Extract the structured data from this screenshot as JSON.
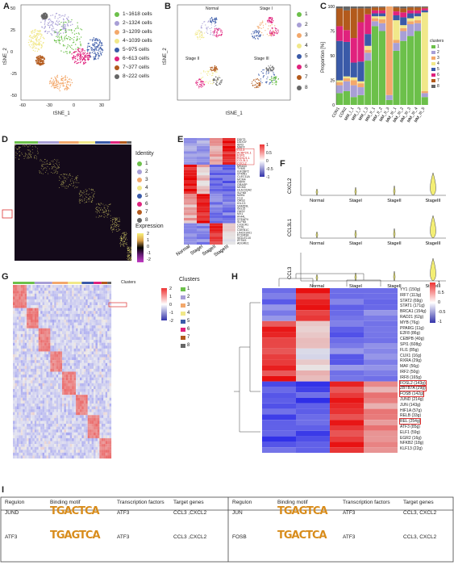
{
  "colors": {
    "c1": "#6cc04a",
    "c2": "#a89fd6",
    "c3": "#f3a86b",
    "c4": "#f1e88a",
    "c5": "#3a5aa8",
    "c6": "#e0227d",
    "c7": "#b35a1c",
    "c8": "#666666"
  },
  "panelA": {
    "label": "A",
    "xlabel": "tSNE_1",
    "ylabel": "tSNE_2",
    "xticks": [
      "-60",
      "-30",
      "0",
      "30"
    ],
    "yticks": [
      "50",
      "25",
      "0",
      "-25",
      "-50"
    ],
    "legend": [
      "1~1618 cells",
      "2~1324 cells",
      "3~1209 cells",
      "4~1039 cells",
      "5~975 cells",
      "6~613 cells",
      "7~377 cells",
      "8~222 cells"
    ]
  },
  "panelB": {
    "label": "B",
    "titles": [
      "Normal",
      "Stage I",
      "Stage II",
      "Stage III"
    ],
    "xlabel": "tSNE_1",
    "ylabel": "tSNE_2",
    "xticks": [
      "-60",
      "-30",
      "0",
      "30"
    ],
    "yticks": [
      "50",
      "25",
      "0",
      "-25"
    ],
    "legend": [
      "1",
      "2",
      "3",
      "4",
      "5",
      "6",
      "7",
      "8"
    ]
  },
  "panelC": {
    "label": "C",
    "ylabel": "Proportion [%]",
    "yticks": [
      "100",
      "75",
      "50",
      "25",
      "0"
    ],
    "legend_title": "clusters",
    "legend": [
      "1",
      "2",
      "3",
      "4",
      "5",
      "6",
      "7",
      "8"
    ]
  },
  "chart_data": {
    "type": "bar",
    "categories": [
      "CON1",
      "CON2",
      "MM_I_1",
      "MM_I_2",
      "MM_I_3",
      "MM_II_1",
      "MM_II_2",
      "MM_II_3",
      "MM_III_1",
      "MM_III_2",
      "MM_III_3",
      "MM_III_4",
      "MM_III_5"
    ],
    "series": [
      {
        "name": "1",
        "values": [
          12,
          14,
          8,
          10,
          45,
          80,
          75,
          5,
          55,
          65,
          70,
          75,
          8
        ]
      },
      {
        "name": "2",
        "values": [
          8,
          10,
          12,
          8,
          8,
          5,
          8,
          5,
          8,
          10,
          12,
          8,
          4
        ]
      },
      {
        "name": "3",
        "values": [
          3,
          3,
          5,
          4,
          3,
          3,
          4,
          90,
          3,
          3,
          3,
          3,
          2
        ]
      },
      {
        "name": "4",
        "values": [
          2,
          2,
          3,
          2,
          4,
          2,
          3,
          0,
          20,
          3,
          3,
          4,
          80
        ]
      },
      {
        "name": "5",
        "values": [
          40,
          35,
          15,
          20,
          12,
          3,
          3,
          0,
          5,
          8,
          5,
          3,
          2
        ]
      },
      {
        "name": "6",
        "values": [
          15,
          12,
          25,
          40,
          20,
          3,
          3,
          0,
          4,
          5,
          3,
          3,
          2
        ]
      },
      {
        "name": "7",
        "values": [
          18,
          20,
          30,
          14,
          6,
          3,
          3,
          0,
          4,
          4,
          3,
          3,
          1
        ]
      },
      {
        "name": "8",
        "values": [
          2,
          4,
          2,
          2,
          2,
          1,
          1,
          0,
          1,
          2,
          1,
          1,
          1
        ]
      }
    ],
    "ylim": [
      0,
      100
    ]
  },
  "panelD": {
    "label": "D",
    "legend_title": "Identity",
    "legend": [
      "1",
      "2",
      "3",
      "4",
      "5",
      "6",
      "7",
      "8"
    ],
    "scale_title": "Expression",
    "scale": [
      "2",
      "1",
      "0",
      "-1",
      "-2"
    ]
  },
  "panelE": {
    "label": "E",
    "genes": [
      "DDIT3",
      "DDX3Y",
      "IER3",
      "MAFF",
      "CCL3",
      "ACBP2/1.1",
      "EGR1",
      "RGS1/1.1",
      "CCL3L1",
      "CXCL2",
      "MS4A3",
      "TYMS",
      "IGF2BP2",
      "STMN1",
      "CLEC11A",
      "MCM4",
      "DHFR",
      "GRASP",
      "MCM4",
      "HLA-DQA2",
      "SLFN5",
      "MZB1",
      "CLU",
      "OAS3",
      "IGLC3",
      "SAMD9L",
      "ISG15",
      "OAS2",
      "MX1",
      "IFI44L",
      "STEAP4",
      "SLFN5",
      "CX3CR1",
      "CTSL",
      "CDKN1C",
      "LINC01001",
      "FCGR3A",
      "SIGLEC10",
      "IFITM3",
      "ADGRE1"
    ],
    "columns": [
      "Normal",
      "StageI",
      "StageII",
      "StageIII"
    ],
    "scale": [
      "1",
      "0.5",
      "0",
      "-0.5",
      "-1"
    ]
  },
  "panelF": {
    "label": "F",
    "genes": [
      "CXCL2",
      "CCL3L1",
      "CCL3"
    ],
    "groups": [
      "Normal",
      "StageI",
      "StageII",
      "StageIII"
    ]
  },
  "panelG": {
    "label": "G",
    "clusters_header": "Clusters",
    "legend_title": "Clusters",
    "legend": [
      "1",
      "2",
      "3",
      "4",
      "5",
      "6",
      "7",
      "8"
    ],
    "scale": [
      "2",
      "1",
      "0",
      "-1",
      "-2"
    ]
  },
  "panelH": {
    "label": "H",
    "tfs": [
      "YY1 (150g)",
      "IRF7 (113g)",
      "STAT2 (69g)",
      "STAT1 (171g)",
      "BRCA1 (154g)",
      "RAD21 (62g)",
      "MYB (76g)",
      "PPARG (11g)",
      "E2F8 (86g)",
      "CEBPB (40g)",
      "SPI1 (608g)",
      "FLI1 (85g)",
      "CUX1 (16g)",
      "RXRA (29g)",
      "MAF (56g)",
      "IRF2 (50g)",
      "IRF8 (165g)",
      "FOSL2 (143g)",
      "ZBTB7A (29g)",
      "FOSB (142g)",
      "JUND (214g)",
      "JUN (143g)",
      "HIF1A (57g)",
      "RELB (33g)",
      "REL (254g)",
      "ATF3 (85g)",
      "ELF1 (59g)",
      "EGR2 (16g)",
      "NFKB2 (18g)",
      "KLF13 (22g)"
    ],
    "scale": [
      "1",
      "0.5",
      "0",
      "-0.5",
      "-1"
    ]
  },
  "panelI": {
    "label": "I",
    "headers": [
      "Regulon",
      "Binding motif",
      "Transcription factors",
      "Target genes"
    ],
    "rows": [
      {
        "regulon": "JUND",
        "motif": "TGACTCA",
        "tf": "ATF3",
        "targets": "CCL3 ,CXCL2",
        "regulon2": "JUN",
        "motif2": "TGAGTCA",
        "tf2": "ATF3",
        "targets2": "CCL3, CXCL2"
      },
      {
        "regulon": "ATF3",
        "motif": "TGAGTCA",
        "tf": "ATF3",
        "targets": "CCL3 ,CXCL2",
        "regulon2": "FOSB",
        "motif2": "TGACTCA",
        "tf2": "ATF3",
        "targets2": "CCL3, CXCL2"
      }
    ]
  }
}
